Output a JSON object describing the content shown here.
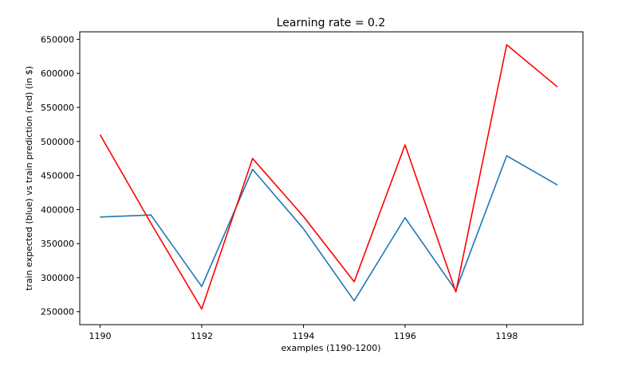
{
  "chart_data": {
    "type": "line",
    "title": "Learning rate = 0.2",
    "xlabel": "examples (1190-1200)",
    "ylabel": "train expected (blue) vs train prediction (red) (in $)",
    "x": [
      1190,
      1191,
      1192,
      1193,
      1194,
      1195,
      1196,
      1197,
      1198,
      1199
    ],
    "xlim": [
      1189.6,
      1199.5
    ],
    "ylim": [
      231000,
      661000
    ],
    "xticks": [
      1190,
      1192,
      1194,
      1196,
      1198
    ],
    "yticks": [
      250000,
      300000,
      350000,
      400000,
      450000,
      500000,
      550000,
      600000,
      650000
    ],
    "grid": false,
    "series": [
      {
        "color": "#1f77b4",
        "values": [
          389000,
          392000,
          287000,
          459000,
          372000,
          266000,
          388000,
          281000,
          479000,
          436000
        ]
      },
      {
        "color": "#ff0000",
        "values": [
          510000,
          380000,
          254000,
          475000,
          390000,
          294000,
          495000,
          279000,
          642000,
          580000
        ]
      }
    ]
  }
}
